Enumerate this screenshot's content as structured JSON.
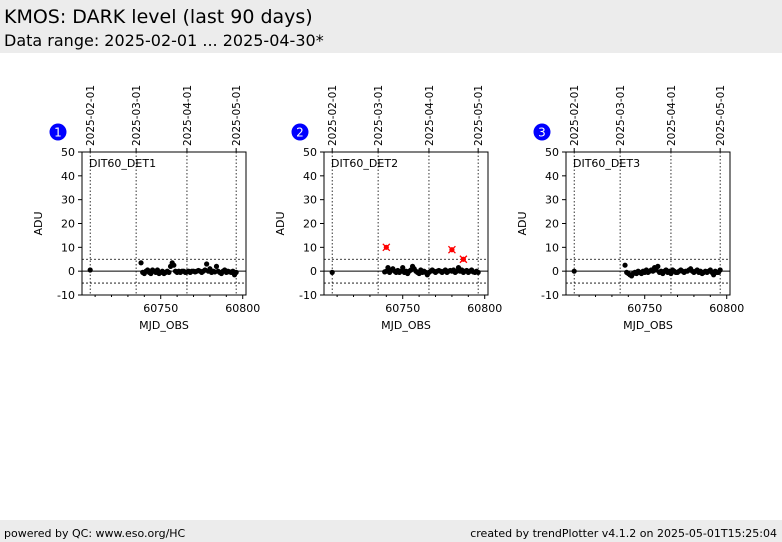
{
  "header": {
    "title": "KMOS: DARK level (last 90 days)",
    "subtitle": "Data range: 2025-02-01 ... 2025-04-30*"
  },
  "footer": {
    "left": "powered by QC: www.eso.org/HC",
    "right": "created by trendPlotter v4.1.2 on 2025-05-01T15:25:04"
  },
  "colors": {
    "points": "#000000",
    "outliers": "#ff0000",
    "badge": "#0000ff",
    "header_bg": "#ececec"
  },
  "chart_data": [
    {
      "type": "scatter",
      "badge": "1",
      "label": "DIT60_DET1",
      "xlabel": "MJD_OBS",
      "ylabel": "ADU",
      "xlim": [
        60702,
        60802
      ],
      "ylim": [
        -10,
        50
      ],
      "xticks": [
        60750,
        60800
      ],
      "yticks": [
        -10,
        0,
        10,
        20,
        30,
        40,
        50
      ],
      "date_ticks": [
        {
          "mjd": 60707,
          "label": "2025-02-01"
        },
        {
          "mjd": 60735,
          "label": "2025-03-01"
        },
        {
          "mjd": 60766,
          "label": "2025-04-01"
        },
        {
          "mjd": 60796,
          "label": "2025-05-01"
        }
      ],
      "reference_line": 0,
      "threshold_lines": [
        5,
        -5
      ],
      "x": [
        60707,
        60738,
        60739,
        60740,
        60741,
        60742,
        60743,
        60744,
        60745,
        60746,
        60747,
        60748,
        60749,
        60750,
        60751,
        60752,
        60753,
        60754,
        60755,
        60756,
        60757,
        60758,
        60759,
        60760,
        60761,
        60762,
        60763,
        60764,
        60765,
        60766,
        60767,
        60768,
        60769,
        60770,
        60771,
        60772,
        60773,
        60774,
        60775,
        60776,
        60777,
        60778,
        60779,
        60780,
        60781,
        60782,
        60783,
        60784,
        60785,
        60786,
        60787,
        60788,
        60789,
        60790,
        60791,
        60792,
        60793,
        60794,
        60795,
        60796
      ],
      "y": [
        0.5,
        3.5,
        -0.5,
        -1,
        0,
        0.5,
        -0.5,
        -1,
        0.5,
        0,
        -0.5,
        0.5,
        -1,
        -0.5,
        0,
        -1,
        -0.5,
        0,
        -0.5,
        2,
        3.5,
        2.5,
        0,
        -0.5,
        0,
        -0.5,
        0,
        0,
        -0.5,
        -0.3,
        0,
        -0.5,
        0,
        0,
        -0.3,
        0,
        0.3,
        0,
        -0.5,
        0,
        0.5,
        3,
        0,
        1,
        -0.5,
        0,
        -0.3,
        2,
        0,
        -0.5,
        -1,
        0,
        0.5,
        -0.5,
        0,
        -0.3,
        -0.5,
        0,
        -1.5,
        -0.5
      ],
      "outliers": []
    },
    {
      "type": "scatter",
      "badge": "2",
      "label": "DIT60_DET2",
      "xlabel": "MJD_OBS",
      "ylabel": "ADU",
      "xlim": [
        60702,
        60802
      ],
      "ylim": [
        -10,
        50
      ],
      "xticks": [
        60750,
        60800
      ],
      "yticks": [
        -10,
        0,
        10,
        20,
        30,
        40,
        50
      ],
      "date_ticks": [
        {
          "mjd": 60707,
          "label": "2025-02-01"
        },
        {
          "mjd": 60735,
          "label": "2025-03-01"
        },
        {
          "mjd": 60766,
          "label": "2025-04-01"
        },
        {
          "mjd": 60796,
          "label": "2025-05-01"
        }
      ],
      "reference_line": 0,
      "threshold_lines": [
        5,
        -5
      ],
      "x": [
        60707,
        60739,
        60740,
        60741,
        60742,
        60743,
        60744,
        60745,
        60746,
        60747,
        60748,
        60749,
        60750,
        60751,
        60752,
        60753,
        60754,
        60755,
        60756,
        60757,
        60758,
        60759,
        60760,
        60761,
        60762,
        60763,
        60764,
        60765,
        60766,
        60767,
        60768,
        60769,
        60770,
        60771,
        60772,
        60773,
        60774,
        60775,
        60776,
        60777,
        60778,
        60779,
        60780,
        60781,
        60782,
        60783,
        60784,
        60785,
        60786,
        60787,
        60788,
        60789,
        60790,
        60791,
        60792,
        60793,
        60794,
        60795,
        60796
      ],
      "y": [
        -0.5,
        -0.3,
        0,
        1.5,
        -0.5,
        0.5,
        1,
        0,
        -0.5,
        0.3,
        -0.5,
        0,
        1.5,
        -0.5,
        0,
        -1,
        0,
        0.5,
        2,
        1,
        0,
        -0.5,
        -1,
        0.5,
        -0.5,
        0,
        -0.5,
        -1.5,
        -0.5,
        0,
        0.5,
        0,
        -0.5,
        0,
        0.3,
        0,
        -0.5,
        0,
        0.5,
        -0.5,
        0,
        0.3,
        0,
        0.5,
        -0.5,
        0,
        1.5,
        0,
        0.5,
        -0.5,
        0,
        0.3,
        -0.5,
        0,
        0.5,
        -0.3,
        -0.5,
        0,
        -0.5
      ],
      "outliers": [
        {
          "x": 60740,
          "y": 10
        },
        {
          "x": 60780,
          "y": 9
        },
        {
          "x": 60787,
          "y": 5
        }
      ]
    },
    {
      "type": "scatter",
      "badge": "3",
      "label": "DIT60_DET3",
      "xlabel": "MJD_OBS",
      "ylabel": "ADU",
      "xlim": [
        60702,
        60802
      ],
      "ylim": [
        -10,
        50
      ],
      "xticks": [
        60750,
        60800
      ],
      "yticks": [
        -10,
        0,
        10,
        20,
        30,
        40,
        50
      ],
      "date_ticks": [
        {
          "mjd": 60707,
          "label": "2025-02-01"
        },
        {
          "mjd": 60735,
          "label": "2025-03-01"
        },
        {
          "mjd": 60766,
          "label": "2025-04-01"
        },
        {
          "mjd": 60796,
          "label": "2025-05-01"
        }
      ],
      "reference_line": 0,
      "threshold_lines": [
        5,
        -5
      ],
      "x": [
        60707,
        60738,
        60739,
        60740,
        60741,
        60742,
        60743,
        60744,
        60745,
        60746,
        60747,
        60748,
        60749,
        60750,
        60751,
        60752,
        60753,
        60754,
        60755,
        60756,
        60757,
        60758,
        60759,
        60760,
        60761,
        60762,
        60763,
        60764,
        60765,
        60766,
        60767,
        60768,
        60769,
        60770,
        60771,
        60772,
        60773,
        60774,
        60775,
        60776,
        60777,
        60778,
        60779,
        60780,
        60781,
        60782,
        60783,
        60784,
        60785,
        60786,
        60787,
        60788,
        60789,
        60790,
        60791,
        60792,
        60793,
        60794,
        60795,
        60796
      ],
      "y": [
        0,
        2.5,
        -0.5,
        -1,
        -1.5,
        -2,
        -1,
        -0.5,
        -1,
        0,
        -0.5,
        -1,
        0,
        -0.5,
        0.5,
        -0.5,
        0,
        0.5,
        0,
        1.5,
        0.5,
        2,
        -0.5,
        0,
        -1,
        0,
        0.5,
        -0.5,
        0,
        -1,
        0.5,
        0,
        -0.5,
        -0.5,
        0,
        0.5,
        0,
        -0.5,
        0,
        0,
        0.5,
        1,
        0,
        -0.5,
        0,
        0.5,
        -0.5,
        0,
        -1,
        -0.5,
        0,
        -0.5,
        0,
        0.5,
        -0.5,
        -1.5,
        0,
        -0.5,
        -0.5,
        0.5
      ],
      "outliers": []
    }
  ]
}
